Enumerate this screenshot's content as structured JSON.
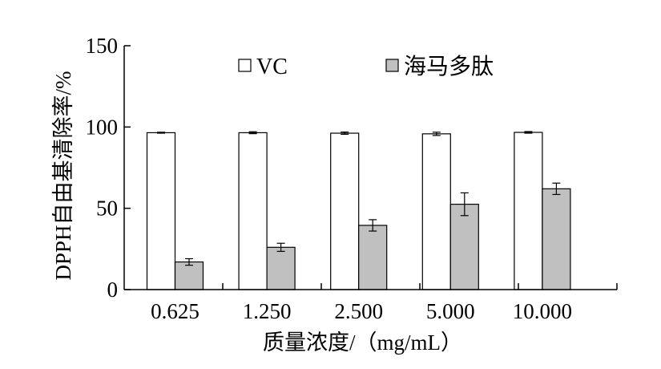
{
  "chart_data": {
    "type": "bar",
    "title": "",
    "xlabel": "质量浓度/（mg/mL）",
    "ylabel": "DPPH自由基清除率/%",
    "categories": [
      "0.625",
      "1.250",
      "2.500",
      "5.000",
      "10.000"
    ],
    "ylim": [
      0,
      150
    ],
    "yticks": [
      0,
      50,
      100,
      150
    ],
    "grid": false,
    "legend_position": "top",
    "series": [
      {
        "name": "VC",
        "values": [
          96.5,
          96.5,
          96.2,
          95.8,
          96.7
        ],
        "errors": [
          0.3,
          0.6,
          0.7,
          1.0,
          0.5
        ],
        "color": "#ffffff"
      },
      {
        "name": "海马多肽",
        "values": [
          17.0,
          26.0,
          39.5,
          52.5,
          62.0
        ],
        "errors": [
          2.0,
          2.5,
          3.5,
          7.0,
          3.5
        ],
        "color": "#c0c0c0"
      }
    ]
  }
}
